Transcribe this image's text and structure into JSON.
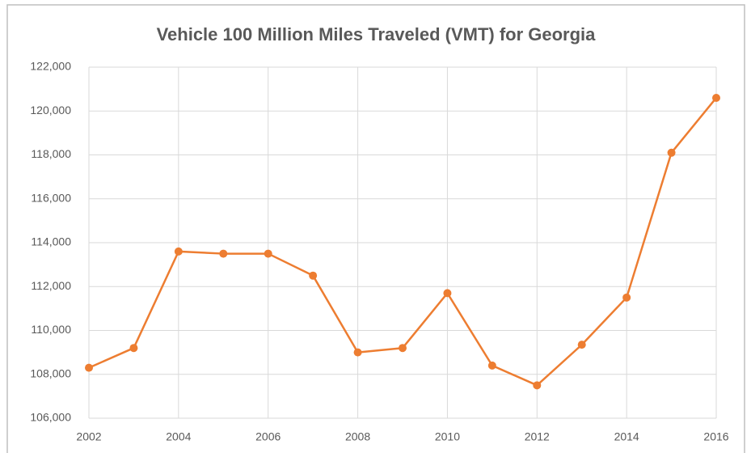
{
  "chart_data": {
    "type": "line",
    "title": "Vehicle 100 Million Miles Traveled (VMT) for Georgia",
    "x": [
      2002,
      2003,
      2004,
      2005,
      2006,
      2007,
      2008,
      2009,
      2010,
      2011,
      2012,
      2013,
      2014,
      2015,
      2016
    ],
    "series": [
      {
        "name": "VMT",
        "color": "#ed7d31",
        "values": [
          108300,
          109200,
          113600,
          113500,
          113500,
          112500,
          109000,
          109200,
          111700,
          108400,
          107500,
          109350,
          111500,
          118100,
          120600
        ]
      }
    ],
    "xlim": [
      2002,
      2016
    ],
    "xticks": [
      2002,
      2004,
      2006,
      2008,
      2010,
      2012,
      2014,
      2016
    ],
    "ylim": [
      106000,
      122000
    ],
    "yticks": [
      {
        "value": 106000,
        "label": "106,000"
      },
      {
        "value": 108000,
        "label": "108,000"
      },
      {
        "value": 110000,
        "label": "110,000"
      },
      {
        "value": 112000,
        "label": "112,000"
      },
      {
        "value": 114000,
        "label": "114,000"
      },
      {
        "value": 116000,
        "label": "116,000"
      },
      {
        "value": 118000,
        "label": "118,000"
      },
      {
        "value": 120000,
        "label": "120,000"
      },
      {
        "value": 122000,
        "label": "122,000"
      }
    ],
    "grid": true
  }
}
